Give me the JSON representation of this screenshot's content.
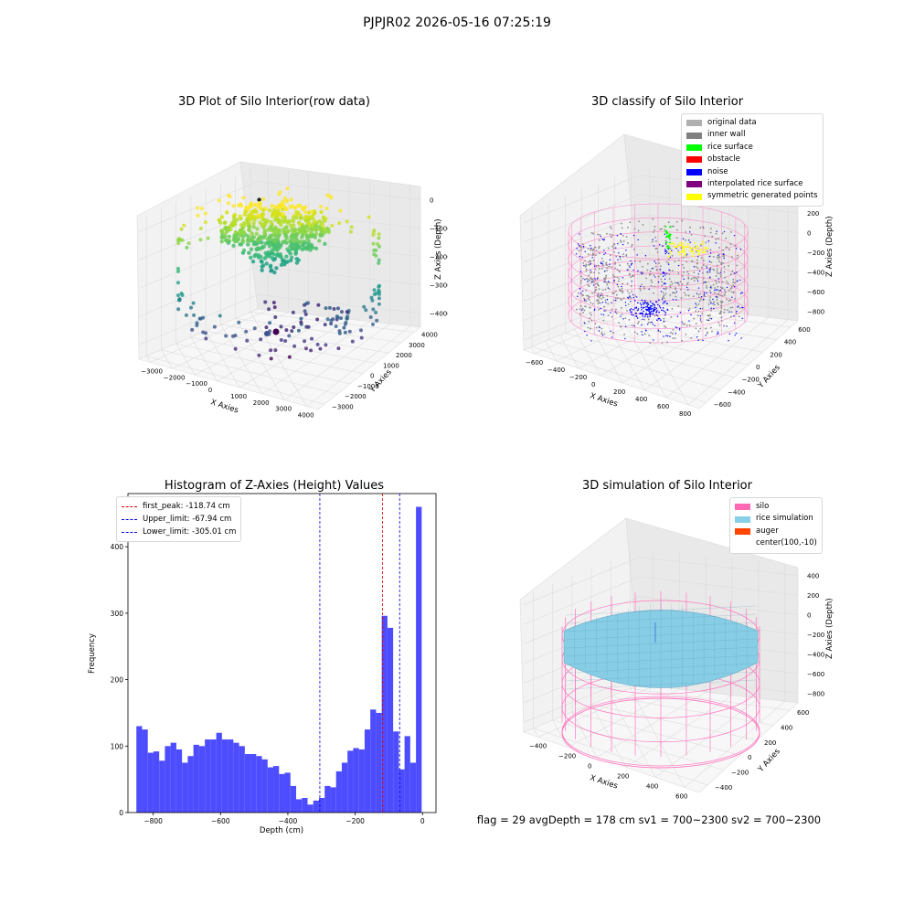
{
  "suptitle": "PJPJR02 2026-05-16 07:25:19",
  "footer": "flag = 29  avgDepth = 178 cm  sv1 = 700~2300  sv2 = 700~2300",
  "colors": {
    "hist_bar": "#4d4dff",
    "peak_line": "#e00000",
    "limit_line": "#0000e0",
    "silo_wire": "#ff77c0",
    "rice": "#87cde6",
    "auger": "#ff4500",
    "panes": "#f2f2f2"
  },
  "plots": {
    "raw": {
      "title": "3D Plot of Silo Interior(row data)",
      "x_axis_label": "X Axies",
      "y_axis_label": "Y Axies",
      "z_axis_label": "Z Axies (Depth)",
      "x_ticks": [
        "−3000",
        "−2000",
        "−1000",
        "0",
        "1000",
        "2000",
        "3000",
        "4000"
      ],
      "y_ticks": [
        "−3000",
        "−2000",
        "−1000",
        "0",
        "1000",
        "2000",
        "3000",
        "4000"
      ],
      "z_ticks": [
        "0",
        "−1000",
        "−2000",
        "−3000",
        "−4000"
      ]
    },
    "classify": {
      "title": "3D classify of Silo Interior",
      "x_axis_label": "X Axies",
      "y_axis_label": "Y Axies",
      "z_axis_label": "Z Axies (Depth)",
      "x_ticks": [
        "−600",
        "−400",
        "−200",
        "0",
        "200",
        "400",
        "600",
        "800"
      ],
      "y_ticks": [
        "−600",
        "−400",
        "−200",
        "0",
        "200",
        "400",
        "600"
      ],
      "z_ticks": [
        "400",
        "200",
        "0",
        "−200",
        "−400",
        "−600",
        "−800"
      ],
      "legend": [
        {
          "label": "original data",
          "color": "#b0b0b0"
        },
        {
          "label": "inner wall",
          "color": "#808080"
        },
        {
          "label": "rice surface",
          "color": "#00ff00"
        },
        {
          "label": "obstacle",
          "color": "#ff0000"
        },
        {
          "label": "noise",
          "color": "#0000ff"
        },
        {
          "label": "interpolated rice surface",
          "color": "#800080"
        },
        {
          "label": "symmetric generated points",
          "color": "#ffff00"
        }
      ]
    },
    "simulation": {
      "title": "3D simulation of Silo Interior",
      "x_axis_label": "X Axies",
      "y_axis_label": "Y Axies",
      "z_axis_label": "Z Axies (Depth)",
      "x_ticks": [
        "−400",
        "−200",
        "0",
        "200",
        "400",
        "600"
      ],
      "y_ticks": [
        "−400",
        "−200",
        "0",
        "200",
        "400",
        "600"
      ],
      "z_ticks": [
        "400",
        "200",
        "0",
        "−200",
        "−400",
        "−600",
        "−800"
      ],
      "legend": [
        {
          "label": "silo",
          "color": "#ff69b4"
        },
        {
          "label": "rice simulation",
          "color": "#87ceeb"
        },
        {
          "label": "auger",
          "color": "#ff4500"
        },
        {
          "label": "center(100,-10)",
          "color": ""
        }
      ]
    }
  },
  "chart_data": {
    "type": "bar",
    "title": "Histogram of Z-Axies (Height) Values",
    "xlabel": "Depth (cm)",
    "ylabel": "Frequency",
    "xlim": [
      -875,
      40
    ],
    "ylim": [
      0,
      480
    ],
    "x_ticks": [
      -800,
      -600,
      -400,
      -200,
      0
    ],
    "x_tick_labels": [
      "−800",
      "−600",
      "−400",
      "−200",
      "0"
    ],
    "y_ticks": [
      0,
      100,
      200,
      300,
      400
    ],
    "bin_start": -850.0,
    "bin_width": 16.95,
    "values": [
      130,
      125,
      90,
      92,
      78,
      100,
      105,
      95,
      75,
      85,
      102,
      100,
      110,
      110,
      120,
      110,
      110,
      105,
      100,
      88,
      88,
      85,
      80,
      68,
      70,
      58,
      60,
      40,
      20,
      22,
      12,
      18,
      22,
      40,
      38,
      62,
      75,
      93,
      97,
      95,
      125,
      155,
      150,
      296,
      278,
      122,
      65,
      115,
      75,
      460
    ],
    "lines": [
      {
        "name": "first_peak: -118.74 cm",
        "x": -118.74,
        "color": "red"
      },
      {
        "name": "Upper_limit: -67.94 cm",
        "x": -67.94,
        "color": "blue"
      },
      {
        "name": "Lower_limit: -305.01 cm",
        "x": -305.01,
        "color": "blue"
      }
    ],
    "legend_position": "upper left"
  }
}
